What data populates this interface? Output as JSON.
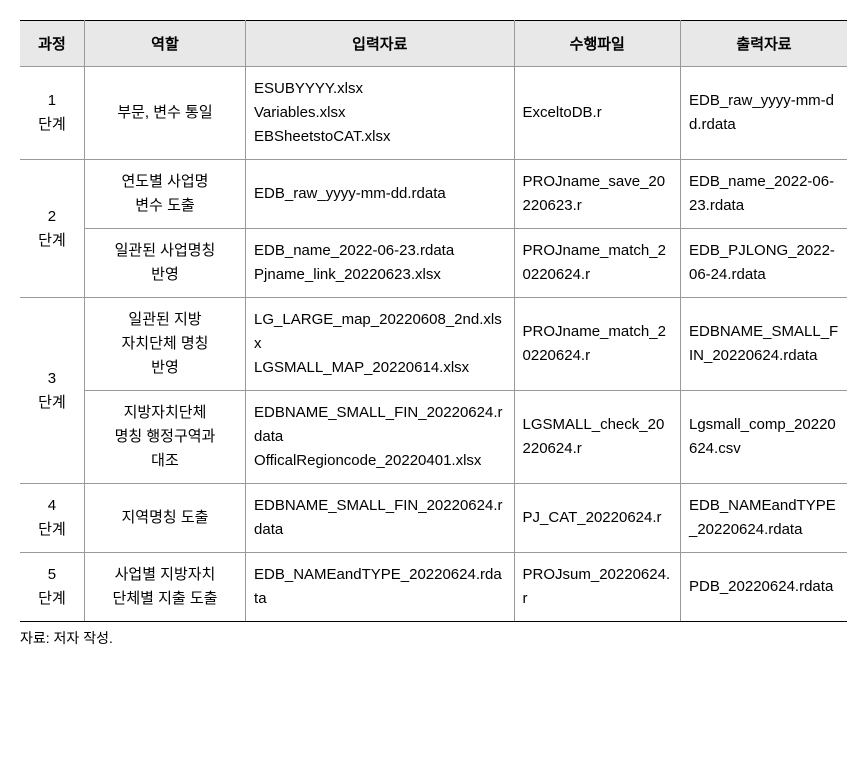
{
  "table": {
    "headers": {
      "stage": "과정",
      "role": "역할",
      "input": "입력자료",
      "exec": "수행파일",
      "output": "출력자료"
    },
    "rows": [
      {
        "stage": "1\n단계",
        "role": "부문, 변수 통일",
        "input": "ESUBYYYY.xlsx\nVariables.xlsx\nEBSheetstoCAT.xlsx",
        "exec": "ExceltoDB.r",
        "output": "EDB_raw_yyyy-mm-dd.rdata"
      },
      {
        "stage": "2\n단계",
        "stage_rowspan": 2,
        "role": "연도별 사업명\n변수 도출",
        "input": "EDB_raw_yyyy-mm-dd.rdata",
        "exec": "PROJname_save_20220623.r",
        "output": "EDB_name_2022-06-23.rdata"
      },
      {
        "role": "일관된 사업명칭\n반영",
        "input": "EDB_name_2022-06-23.rdata\nPjname_link_20220623.xlsx",
        "exec": "PROJname_match_20220624.r",
        "output": "EDB_PJLONG_2022-06-24.rdata"
      },
      {
        "stage": "3\n단계",
        "stage_rowspan": 2,
        "role": "일관된 지방\n자치단체 명칭\n반영",
        "input": "LG_LARGE_map_20220608_2nd.xlsx\nLGSMALL_MAP_20220614.xlsx",
        "exec": "PROJname_match_20220624.r",
        "output": "EDBNAME_SMALL_FIN_20220624.rdata"
      },
      {
        "role": "지방자치단체\n명칭 행정구역과\n대조",
        "input": "EDBNAME_SMALL_FIN_20220624.rdata\nOfficalRegioncode_20220401.xlsx",
        "exec": "LGSMALL_check_20220624.r",
        "output": "Lgsmall_comp_20220624.csv"
      },
      {
        "stage": "4\n단계",
        "role": "지역명칭 도출",
        "input": "EDBNAME_SMALL_FIN_20220624.rdata",
        "exec": "PJ_CAT_20220624.r",
        "output": "EDB_NAMEandTYPE_20220624.rdata"
      },
      {
        "stage": "5\n단계",
        "role": "사업별 지방자치\n단체별 지출 도출",
        "input": "EDB_NAMEandTYPE_20220624.rdata",
        "exec": "PROJsum_20220624.r",
        "output": "PDB_20220624.rdata"
      }
    ]
  },
  "caption": "자료: 저자 작성.",
  "style": {
    "header_bg": "#e8e8e8",
    "border_color": "#999999",
    "border_strong": "#000000",
    "text_color": "#000000",
    "font_size_pt": 11,
    "background": "#ffffff"
  }
}
